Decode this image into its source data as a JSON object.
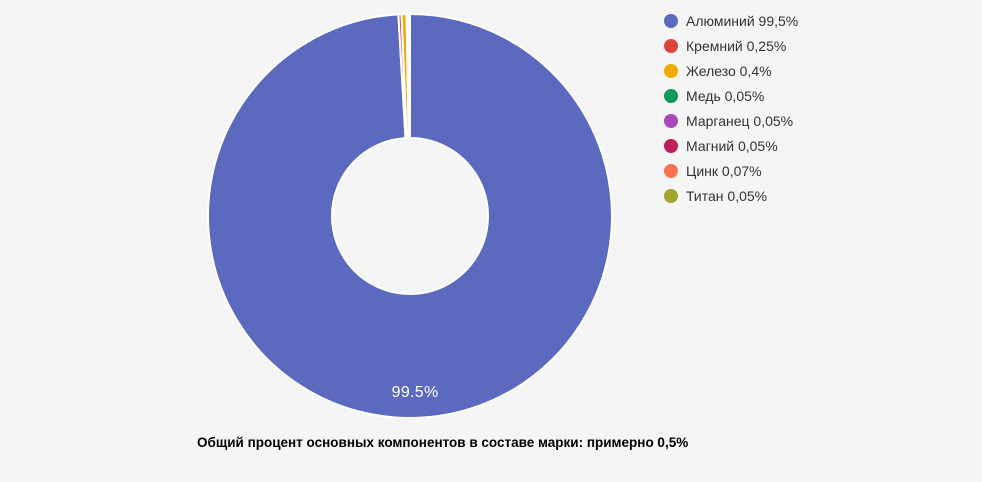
{
  "background": "#f5f5f6",
  "chart_data": {
    "type": "pie",
    "donut": true,
    "hole_ratio": 0.386,
    "direction": "clockwise",
    "start_angle_deg": 0,
    "legend_position": "right",
    "border_color": "#ffffff",
    "series": [
      {
        "name": "Алюминий",
        "value": 99.5,
        "color": "#5b6abf",
        "legend_text": "Алюминий 99,5%",
        "slice_label": "99.5%"
      },
      {
        "name": "Кремний",
        "value": 0.25,
        "color": "#d9463c",
        "legend_text": "Кремний 0,25%"
      },
      {
        "name": "Железо",
        "value": 0.4,
        "color": "#f0ab00",
        "legend_text": "Железо 0,4%"
      },
      {
        "name": "Медь",
        "value": 0.05,
        "color": "#0d9a58",
        "legend_text": "Медь 0,05%"
      },
      {
        "name": "Марганец",
        "value": 0.05,
        "color": "#ab47bc",
        "legend_text": "Марганец 0,05%"
      },
      {
        "name": "Магний",
        "value": 0.05,
        "color": "#c01d5b",
        "legend_text": "Магний 0,05%"
      },
      {
        "name": "Цинк",
        "value": 0.07,
        "color": "#fa7350",
        "legend_text": "Цинк 0,07%"
      },
      {
        "name": "Титан",
        "value": 0.05,
        "color": "#a2a52a",
        "legend_text": "Титан 0,05%"
      }
    ],
    "caption": "Общий процент основных компонентов в составе марки: примерно 0,5%"
  },
  "slice_label": {
    "text": "99.5%",
    "color": "#ffffff"
  },
  "caption": {
    "text": "Общий процент основных компонентов в составе марки: примерно 0,5%"
  }
}
